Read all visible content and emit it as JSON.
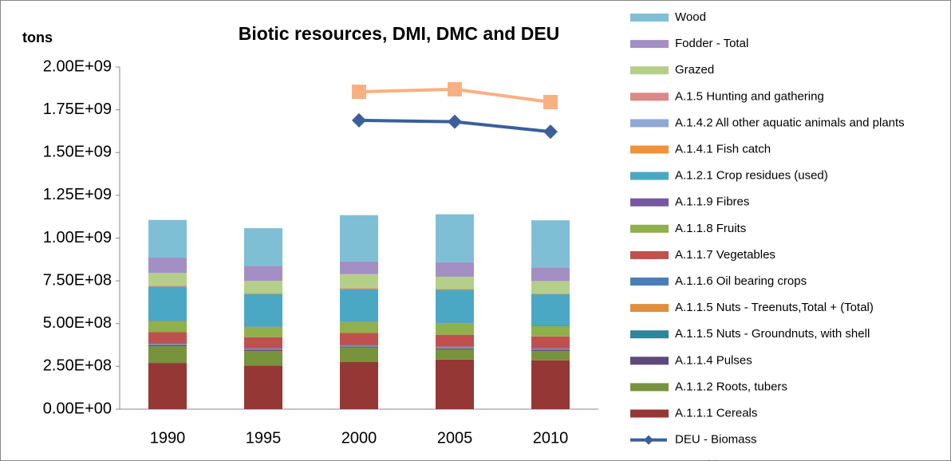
{
  "chart_data": {
    "type": "stacked-bar-line",
    "title": "Biotic resources, DMI, DMC and DEU",
    "y_label": "tons",
    "categories": [
      "1990",
      "1995",
      "2000",
      "2005",
      "2010"
    ],
    "ylim": [
      0,
      2000000000
    ],
    "yticks": [
      {
        "value": 0,
        "label": "0.00E+00"
      },
      {
        "value": 250000000,
        "label": "2.50E+08"
      },
      {
        "value": 500000000,
        "label": "5.00E+08"
      },
      {
        "value": 750000000,
        "label": "7.50E+08"
      },
      {
        "value": 1000000000,
        "label": "1.00E+09"
      },
      {
        "value": 1250000000,
        "label": "1.25E+09"
      },
      {
        "value": 1500000000,
        "label": "1.50E+09"
      },
      {
        "value": 1750000000,
        "label": "1.75E+09"
      },
      {
        "value": 2000000000,
        "label": "2.00E+09"
      }
    ],
    "grid": false,
    "series": [
      {
        "name": "A.1.1.1 Cereals",
        "type": "bar",
        "color": "#953735",
        "values": [
          270000000,
          255000000,
          275000000,
          290000000,
          285000000
        ]
      },
      {
        "name": "A.1.1.2 Roots, tubers",
        "type": "bar",
        "color": "#77933c",
        "values": [
          98000000,
          85000000,
          85000000,
          60000000,
          55000000
        ]
      },
      {
        "name": "A.1.1.4 Pulses",
        "type": "bar",
        "color": "#5f497a",
        "values": [
          6000000,
          5000000,
          5000000,
          5000000,
          5000000
        ]
      },
      {
        "name": "A.1.1.5 Nuts - Groundnuts, with shell",
        "type": "bar",
        "color": "#31859b",
        "values": [
          3000000,
          3000000,
          3000000,
          3000000,
          3000000
        ]
      },
      {
        "name": "A.1.1.5 Nuts - Treenuts,Total + (Total)",
        "type": "bar",
        "color": "#e08f3c",
        "values": [
          2000000,
          2000000,
          2000000,
          2000000,
          2000000
        ]
      },
      {
        "name": "A.1.1.6 Oil bearing crops",
        "type": "bar",
        "color": "#4a7ebb",
        "values": [
          8000000,
          5000000,
          5000000,
          5000000,
          5000000
        ]
      },
      {
        "name": "A.1.1.7 Vegetables",
        "type": "bar",
        "color": "#c0504d",
        "values": [
          63000000,
          66000000,
          70000000,
          70000000,
          70000000
        ]
      },
      {
        "name": "A.1.1.8 Fruits",
        "type": "bar",
        "color": "#8fb04b",
        "values": [
          65000000,
          60000000,
          65000000,
          65000000,
          60000000
        ]
      },
      {
        "name": "A.1.1.9 Fibres",
        "type": "bar",
        "color": "#7558a0",
        "values": [
          2000000,
          2000000,
          2000000,
          2000000,
          2000000
        ]
      },
      {
        "name": "A.1.2.1 Crop residues (used)",
        "type": "bar",
        "color": "#4aa8c4",
        "values": [
          200000000,
          190000000,
          190000000,
          195000000,
          185000000
        ]
      },
      {
        "name": "A.1.4.1 Fish catch",
        "type": "bar",
        "color": "#f0923b",
        "values": [
          5000000,
          5000000,
          5000000,
          5000000,
          5000000
        ]
      },
      {
        "name": "A.1.4.2 All other aquatic animals and plants",
        "type": "bar",
        "color": "#8fa8d4",
        "values": [
          1000000,
          1000000,
          1000000,
          1000000,
          1000000
        ]
      },
      {
        "name": "A.1.5 Hunting and gathering",
        "type": "bar",
        "color": "#d98a88",
        "values": [
          1000000,
          1000000,
          1000000,
          1000000,
          1000000
        ]
      },
      {
        "name": "Grazed",
        "type": "bar",
        "color": "#b4cf8a",
        "values": [
          72000000,
          70000000,
          80000000,
          70000000,
          70000000
        ]
      },
      {
        "name": "Fodder - Total",
        "type": "bar",
        "color": "#a38fc3",
        "values": [
          90000000,
          88000000,
          75000000,
          85000000,
          80000000
        ]
      },
      {
        "name": "Wood",
        "type": "bar",
        "color": "#7fbfd6",
        "values": [
          220000000,
          220000000,
          270000000,
          280000000,
          275000000
        ]
      },
      {
        "name": "DEU - Biomass",
        "type": "line",
        "marker": "diamond",
        "color": "#3a5f9a",
        "values": [
          null,
          null,
          1688000000,
          1680000000,
          1622000000
        ]
      },
      {
        "name": "DMI - biomass",
        "type": "line",
        "marker": "square",
        "color": "#f9b081",
        "values": [
          null,
          null,
          1855000000,
          1870000000,
          1795000000
        ]
      }
    ]
  }
}
